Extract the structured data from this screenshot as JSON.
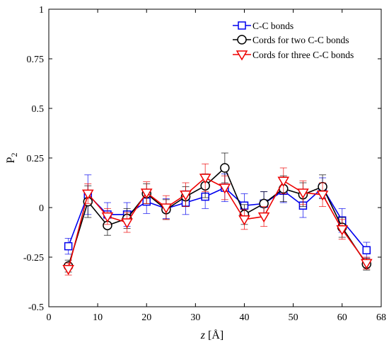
{
  "chart_data": {
    "type": "line",
    "xlabel": {
      "var": "z",
      "unit": " [Å]"
    },
    "ylabel": {
      "base": "P",
      "sub": "2"
    },
    "xlim": [
      0,
      68
    ],
    "ylim": [
      -0.5,
      1
    ],
    "x_ticks": [
      0,
      10,
      20,
      30,
      40,
      50,
      60,
      68
    ],
    "y_ticks": [
      -0.5,
      -0.25,
      0,
      0.25,
      0.5,
      0.75,
      1
    ],
    "x_tick_labels": [
      "0",
      "10",
      "20",
      "30",
      "40",
      "50",
      "60",
      "68"
    ],
    "y_tick_labels": [
      "-0.5",
      "-0.25",
      "0",
      "0.25",
      "0.5",
      "0.75",
      "1"
    ],
    "grid": false,
    "legend_position": "top-right",
    "series": [
      {
        "name": "C-C bonds",
        "color": "#0000ee",
        "marker": "square",
        "points": [
          {
            "x": 4,
            "y": -0.195,
            "err": 0.04
          },
          {
            "x": 8,
            "y": 0.065,
            "err": 0.1
          },
          {
            "x": 12,
            "y": -0.035,
            "err": 0.06
          },
          {
            "x": 16,
            "y": -0.035,
            "err": 0.06
          },
          {
            "x": 20,
            "y": 0.03,
            "err": 0.06
          },
          {
            "x": 24,
            "y": -0.005,
            "err": 0.05
          },
          {
            "x": 28,
            "y": 0.025,
            "err": 0.06
          },
          {
            "x": 32,
            "y": 0.055,
            "err": 0.06
          },
          {
            "x": 36,
            "y": 0.1,
            "err": 0.07
          },
          {
            "x": 40,
            "y": 0.01,
            "err": 0.06
          },
          {
            "x": 44,
            "y": 0.02,
            "err": 0.06
          },
          {
            "x": 48,
            "y": 0.085,
            "err": 0.06
          },
          {
            "x": 52,
            "y": 0.01,
            "err": 0.06
          },
          {
            "x": 56,
            "y": 0.1,
            "err": 0.05
          },
          {
            "x": 60,
            "y": -0.065,
            "err": 0.06
          },
          {
            "x": 65,
            "y": -0.215,
            "err": 0.04
          }
        ]
      },
      {
        "name": "Cords for two C-C bonds",
        "color": "#000000",
        "marker": "circle",
        "points": [
          {
            "x": 4,
            "y": -0.295,
            "err": 0.03
          },
          {
            "x": 8,
            "y": 0.03,
            "err": 0.08
          },
          {
            "x": 12,
            "y": -0.09,
            "err": 0.05
          },
          {
            "x": 16,
            "y": -0.055,
            "err": 0.05
          },
          {
            "x": 20,
            "y": 0.07,
            "err": 0.05
          },
          {
            "x": 24,
            "y": -0.01,
            "err": 0.05
          },
          {
            "x": 28,
            "y": 0.055,
            "err": 0.05
          },
          {
            "x": 32,
            "y": 0.11,
            "err": 0.06
          },
          {
            "x": 36,
            "y": 0.2,
            "err": 0.075
          },
          {
            "x": 40,
            "y": -0.035,
            "err": 0.05
          },
          {
            "x": 44,
            "y": 0.02,
            "err": 0.06
          },
          {
            "x": 48,
            "y": 0.095,
            "err": 0.065
          },
          {
            "x": 52,
            "y": 0.065,
            "err": 0.06
          },
          {
            "x": 56,
            "y": 0.105,
            "err": 0.06
          },
          {
            "x": 60,
            "y": -0.1,
            "err": 0.05
          },
          {
            "x": 65,
            "y": -0.285,
            "err": 0.03
          }
        ]
      },
      {
        "name": "Cords for three C-C bonds",
        "color": "#ee0000",
        "marker": "triangle-down",
        "points": [
          {
            "x": 4,
            "y": -0.31,
            "err": 0.03
          },
          {
            "x": 8,
            "y": 0.07,
            "err": 0.05
          },
          {
            "x": 12,
            "y": -0.045,
            "err": 0.04
          },
          {
            "x": 16,
            "y": -0.075,
            "err": 0.05
          },
          {
            "x": 20,
            "y": 0.075,
            "err": 0.055
          },
          {
            "x": 24,
            "y": 0.0,
            "err": 0.06
          },
          {
            "x": 28,
            "y": 0.065,
            "err": 0.06
          },
          {
            "x": 32,
            "y": 0.15,
            "err": 0.07
          },
          {
            "x": 36,
            "y": 0.1,
            "err": 0.06
          },
          {
            "x": 40,
            "y": -0.06,
            "err": 0.05
          },
          {
            "x": 44,
            "y": -0.045,
            "err": 0.05
          },
          {
            "x": 48,
            "y": 0.135,
            "err": 0.065
          },
          {
            "x": 52,
            "y": 0.075,
            "err": 0.06
          },
          {
            "x": 56,
            "y": 0.065,
            "err": 0.06
          },
          {
            "x": 60,
            "y": -0.11,
            "err": 0.05
          },
          {
            "x": 65,
            "y": -0.28,
            "err": 0.03
          }
        ]
      }
    ]
  }
}
